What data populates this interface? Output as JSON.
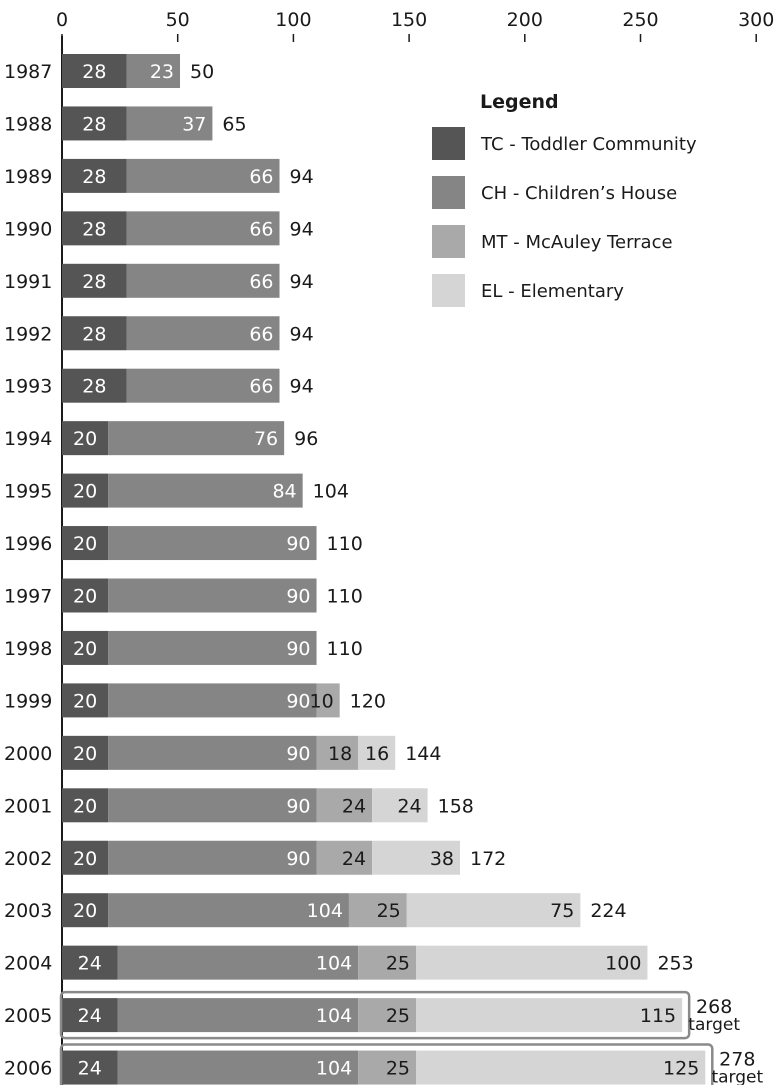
{
  "chart_data": {
    "type": "bar",
    "orientation": "horizontal",
    "stacked": true,
    "xlim": [
      0,
      300
    ],
    "x_ticks": [
      0,
      50,
      100,
      150,
      200,
      250,
      300
    ],
    "categories": [
      "1987",
      "1988",
      "1989",
      "1990",
      "1991",
      "1992",
      "1993",
      "1994",
      "1995",
      "1996",
      "1997",
      "1998",
      "1999",
      "2000",
      "2001",
      "2002",
      "2003",
      "2004",
      "2005",
      "2006"
    ],
    "series": [
      {
        "key": "TC",
        "color": "#555555",
        "label_color": "#ffffff",
        "values": [
          28,
          28,
          28,
          28,
          28,
          28,
          28,
          20,
          20,
          20,
          20,
          20,
          20,
          20,
          20,
          20,
          20,
          24,
          24,
          24
        ]
      },
      {
        "key": "CH",
        "color": "#858585",
        "label_color": "#ffffff",
        "values": [
          23,
          37,
          66,
          66,
          66,
          66,
          66,
          76,
          84,
          90,
          90,
          90,
          90,
          90,
          90,
          90,
          104,
          104,
          104,
          104
        ]
      },
      {
        "key": "MT",
        "color": "#a9a9a9",
        "label_color": "#1a1a1a",
        "values": [
          0,
          0,
          0,
          0,
          0,
          0,
          0,
          0,
          0,
          0,
          0,
          0,
          10,
          18,
          24,
          24,
          25,
          25,
          25,
          25
        ]
      },
      {
        "key": "EL",
        "color": "#d5d5d5",
        "label_color": "#1a1a1a",
        "values": [
          0,
          0,
          0,
          0,
          0,
          0,
          0,
          0,
          0,
          0,
          0,
          0,
          0,
          16,
          24,
          38,
          75,
          100,
          115,
          125
        ]
      }
    ],
    "segment_labels": [
      [
        "28",
        "23",
        "",
        ""
      ],
      [
        "28",
        "37",
        "",
        ""
      ],
      [
        "28",
        "66",
        "",
        ""
      ],
      [
        "28",
        "66",
        "",
        ""
      ],
      [
        "28",
        "66",
        "",
        ""
      ],
      [
        "28",
        "66",
        "",
        ""
      ],
      [
        "28",
        "66",
        "",
        ""
      ],
      [
        "20",
        "76",
        "",
        ""
      ],
      [
        "20",
        "84",
        "",
        ""
      ],
      [
        "20",
        "90",
        "",
        ""
      ],
      [
        "20",
        "90",
        "",
        ""
      ],
      [
        "20",
        "90",
        "",
        ""
      ],
      [
        "20",
        "90",
        "10",
        ""
      ],
      [
        "20",
        "90",
        "18",
        "16"
      ],
      [
        "20",
        "90",
        "24",
        "24"
      ],
      [
        "20",
        "90",
        "24",
        "38"
      ],
      [
        "20",
        "104",
        "25",
        "75"
      ],
      [
        "24",
        "104",
        "25",
        "100"
      ],
      [
        "24",
        "104",
        "25",
        "115"
      ],
      [
        "24",
        "104",
        "25",
        "125"
      ]
    ],
    "totals": [
      "50",
      "65",
      "94",
      "94",
      "94",
      "94",
      "94",
      "96",
      "104",
      "110",
      "110",
      "110",
      "120",
      "144",
      "158",
      "172",
      "224",
      "253",
      "268",
      "278"
    ],
    "target_rows": [
      "2005",
      "2006"
    ],
    "target_word": "target",
    "legend": {
      "title": "Legend",
      "placement": "top-right",
      "items": [
        {
          "label": "TC - Toddler Community",
          "color": "#555555"
        },
        {
          "label": "CH - Children’s House",
          "color": "#858585"
        },
        {
          "label": "MT - McAuley Terrace",
          "color": "#a9a9a9"
        },
        {
          "label": "EL - Elementary",
          "color": "#d5d5d5"
        }
      ]
    }
  }
}
